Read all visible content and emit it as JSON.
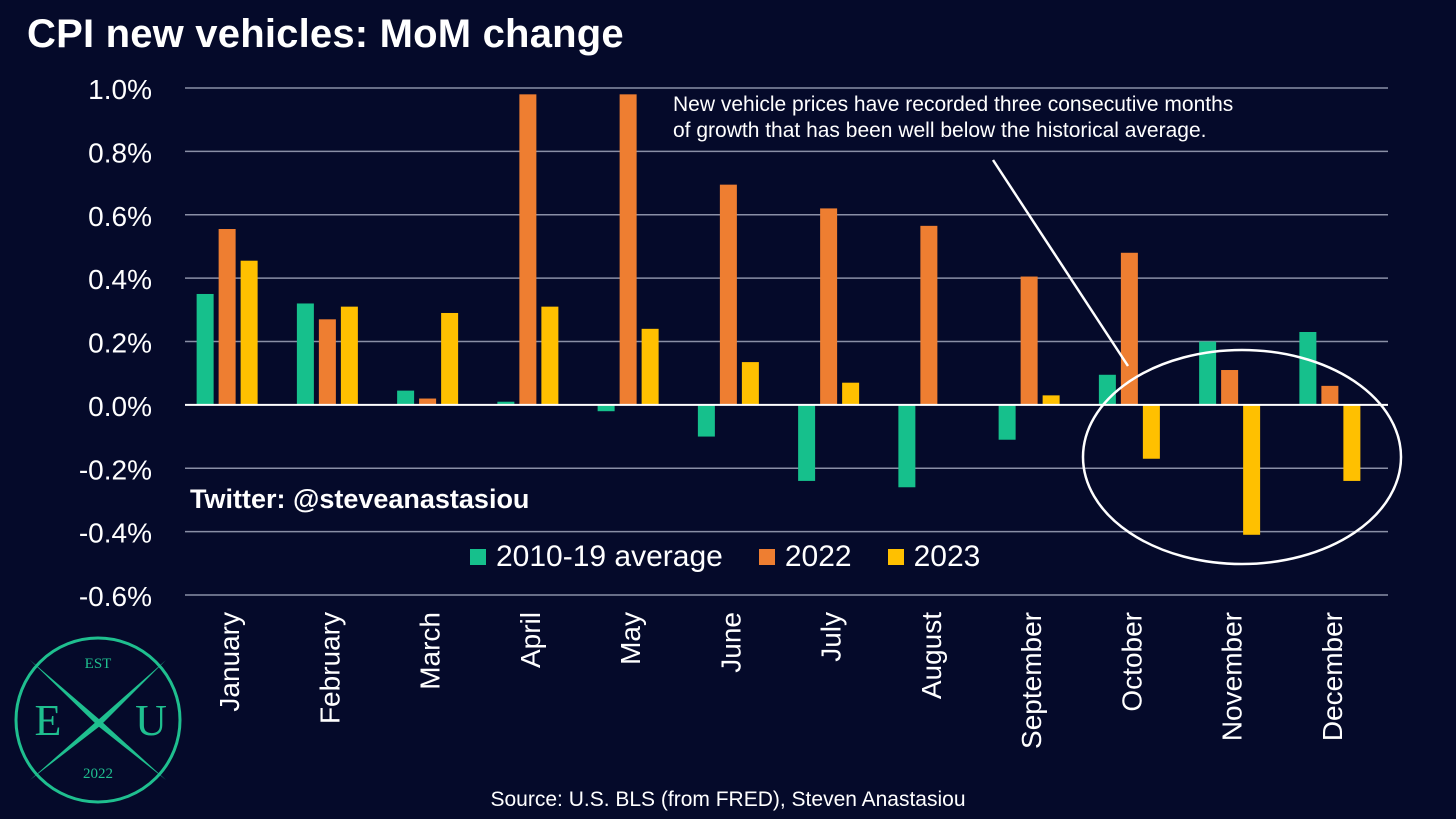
{
  "title": "CPI new vehicles: MoM change",
  "twitter": "Twitter: @steveanastasiou",
  "source": "Source: U.S. BLS (from FRED), Steven Anastasiou",
  "annotation": {
    "line1": "New vehicle prices have recorded three consecutive months",
    "line2": "of growth that has been well below the historical average."
  },
  "logo": {
    "top": "EST",
    "left": "E",
    "right": "U",
    "bottom": "2022"
  },
  "colors": {
    "background": "#050a2a",
    "avg": "#16c08c",
    "y2022": "#ee7e31",
    "y2023": "#ffc000",
    "grid": "#8a8fa6"
  },
  "chart_data": {
    "type": "bar",
    "categories": [
      "January",
      "February",
      "March",
      "April",
      "May",
      "June",
      "July",
      "August",
      "September",
      "October",
      "November",
      "December"
    ],
    "series": [
      {
        "name": "2010-19 average",
        "color": "#16c08c",
        "values": [
          0.35,
          0.32,
          0.045,
          0.01,
          -0.02,
          -0.1,
          -0.24,
          -0.26,
          -0.11,
          0.095,
          0.2,
          0.23
        ]
      },
      {
        "name": "2022",
        "color": "#ee7e31",
        "values": [
          0.555,
          0.27,
          0.02,
          0.98,
          0.98,
          0.695,
          0.62,
          0.565,
          0.405,
          0.48,
          0.11,
          0.06
        ]
      },
      {
        "name": "2023",
        "color": "#ffc000",
        "values": [
          0.455,
          0.31,
          0.29,
          0.31,
          0.24,
          0.135,
          0.07,
          0.0,
          0.03,
          -0.17,
          -0.41,
          -0.24
        ]
      }
    ],
    "ylim": [
      -0.6,
      1.0
    ],
    "yticks": [
      1.0,
      0.8,
      0.6,
      0.4,
      0.2,
      0.0,
      -0.2,
      -0.4,
      -0.6
    ],
    "ytick_labels": [
      "1.0%",
      "0.8%",
      "0.6%",
      "0.4%",
      "0.2%",
      "0.0%",
      "-0.2%",
      "-0.4%",
      "-0.6%"
    ],
    "grid": true,
    "legend_position": "bottom-center"
  }
}
